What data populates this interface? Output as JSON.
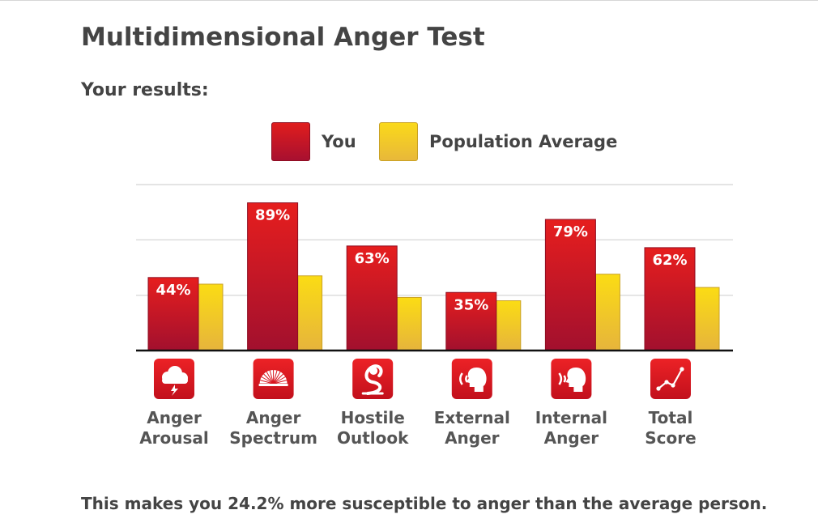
{
  "title": "Multidimensional Anger Test",
  "subtitle": "Your results:",
  "legend": {
    "you": "You",
    "average": "Population Average"
  },
  "footer": "This makes you 24.2% more susceptible to anger than the average person.",
  "colors": {
    "you_top": "#e61e1e",
    "you_bottom": "#a2102e",
    "avg_top": "#fbdc14",
    "avg_bottom": "#e6b43c",
    "icon_bg": "#d8141e"
  },
  "chart_data": {
    "type": "bar",
    "categories": [
      "Anger\nArousal",
      "Anger\nSpectrum",
      "Hostile\nOutlook",
      "External\nAnger",
      "Internal\nAnger",
      "Total\nScore"
    ],
    "category_icons": [
      "storm-cloud-icon",
      "spectrum-fan-icon",
      "cobra-icon",
      "external-voice-icon",
      "internal-voice-icon",
      "line-chart-icon"
    ],
    "series": [
      {
        "name": "You",
        "values": [
          44,
          89,
          63,
          35,
          79,
          62
        ],
        "labels": [
          "44%",
          "89%",
          "63%",
          "35%",
          "79%",
          "62%"
        ]
      },
      {
        "name": "Population Average",
        "values": [
          40,
          45,
          32,
          30,
          46,
          38
        ]
      }
    ],
    "ylim": [
      0,
      100
    ],
    "grid": true,
    "legend_position": "top-center"
  }
}
